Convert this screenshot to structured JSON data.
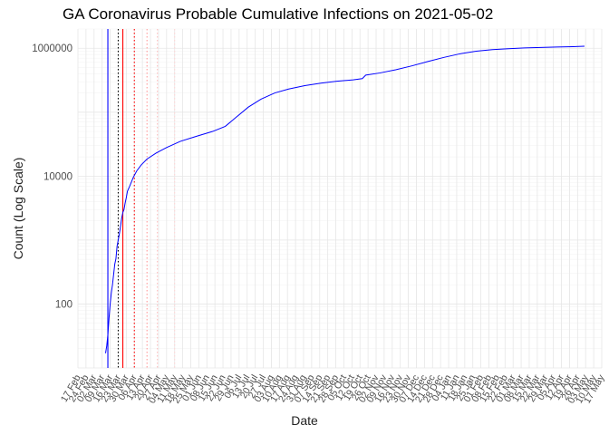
{
  "chart_data": {
    "type": "line",
    "title": "GA Coronavirus Probable Cumulative Infections on 2021-05-02",
    "xlabel": "Date",
    "ylabel": "Count (Log Scale)",
    "y_scale": "log10",
    "ylim": [
      10,
      2000000
    ],
    "x_start": "2020-02-17",
    "x_end": "2021-05-17",
    "grid": true,
    "y_ticks": [
      {
        "value": 100,
        "label": "100"
      },
      {
        "value": 10000,
        "label": "10000"
      },
      {
        "value": 1000000,
        "label": "1000000"
      }
    ],
    "x_tick_labels": [
      "17 Feb",
      "24 Feb",
      "02 Mar",
      "09 Mar",
      "16 Mar",
      "23 Mar",
      "30 Mar",
      "06 Apr",
      "13 Apr",
      "20 Apr",
      "27 Apr",
      "04 May",
      "11 May",
      "18 May",
      "25 May",
      "01 Jun",
      "08 Jun",
      "15 Jun",
      "22 Jun",
      "29 Jun",
      "06 Jul",
      "13 Jul",
      "20 Jul",
      "27 Jul",
      "03 Aug",
      "10 Aug",
      "17 Aug",
      "24 Aug",
      "31 Aug",
      "07 Sep",
      "14 Sep",
      "21 Sep",
      "28 Sep",
      "05 Oct",
      "12 Oct",
      "19 Oct",
      "26 Oct",
      "02 Nov",
      "09 Nov",
      "16 Nov",
      "23 Nov",
      "30 Nov",
      "07 Dec",
      "14 Dec",
      "21 Dec",
      "28 Dec",
      "04 Jan",
      "11 Jan",
      "18 Jan",
      "25 Jan",
      "01 Feb",
      "08 Feb",
      "15 Feb",
      "22 Feb",
      "01 Mar",
      "08 Mar",
      "15 Mar",
      "22 Mar",
      "29 Mar",
      "05 Apr",
      "12 Apr",
      "19 Apr",
      "26 Apr",
      "03 May",
      "10 May",
      "17 May"
    ],
    "vlines": [
      {
        "date": "2020-03-14",
        "color": "#0000ff",
        "style": "solid"
      },
      {
        "date": "2020-03-23",
        "color": "#000000",
        "style": "dotted"
      },
      {
        "date": "2020-03-27",
        "color": "#ff0000",
        "style": "solid"
      },
      {
        "date": "2020-04-06",
        "color": "#ff0000",
        "style": "dotted"
      },
      {
        "date": "2020-04-17",
        "color": "#ff9999",
        "style": "dotted"
      },
      {
        "date": "2020-04-26",
        "color": "#ffc0c0",
        "style": "dotted"
      },
      {
        "date": "2020-05-11",
        "color": "#ffd6d6",
        "style": "dotted"
      }
    ],
    "series": [
      {
        "color": "#0000ff",
        "points": [
          [
            "2020-03-12",
            17
          ],
          [
            "2020-03-13",
            22
          ],
          [
            "2020-03-14",
            33
          ],
          [
            "2020-03-15",
            60
          ],
          [
            "2020-03-16",
            100
          ],
          [
            "2020-03-17",
            150
          ],
          [
            "2020-03-18",
            200
          ],
          [
            "2020-03-19",
            290
          ],
          [
            "2020-03-20",
            420
          ],
          [
            "2020-03-21",
            510
          ],
          [
            "2020-03-22",
            800
          ],
          [
            "2020-03-23",
            1000
          ],
          [
            "2020-03-24",
            1250
          ],
          [
            "2020-03-25",
            1650
          ],
          [
            "2020-03-26",
            2200
          ],
          [
            "2020-03-27",
            2700
          ],
          [
            "2020-03-28",
            3000
          ],
          [
            "2020-03-29",
            3800
          ],
          [
            "2020-03-30",
            4600
          ],
          [
            "2020-03-31",
            5800
          ],
          [
            "2020-04-02",
            7000
          ],
          [
            "2020-04-05",
            9500
          ],
          [
            "2020-04-08",
            12000
          ],
          [
            "2020-04-12",
            15000
          ],
          [
            "2020-04-17",
            18500
          ],
          [
            "2020-04-25",
            23000
          ],
          [
            "2020-05-04",
            28000
          ],
          [
            "2020-05-16",
            35000
          ],
          [
            "2020-05-30",
            42000
          ],
          [
            "2020-06-13",
            50000
          ],
          [
            "2020-06-24",
            60000
          ],
          [
            "2020-07-04",
            85000
          ],
          [
            "2020-07-14",
            120000
          ],
          [
            "2020-07-25",
            160000
          ],
          [
            "2020-08-06",
            200000
          ],
          [
            "2020-08-18",
            230000
          ],
          [
            "2020-09-01",
            260000
          ],
          [
            "2020-09-15",
            285000
          ],
          [
            "2020-09-29",
            305000
          ],
          [
            "2020-10-13",
            320000
          ],
          [
            "2020-10-21",
            335000
          ],
          [
            "2020-10-24",
            380000
          ],
          [
            "2020-11-05",
            410000
          ],
          [
            "2020-11-19",
            460000
          ],
          [
            "2020-12-03",
            530000
          ],
          [
            "2020-12-17",
            620000
          ],
          [
            "2020-12-31",
            720000
          ],
          [
            "2021-01-14",
            820000
          ],
          [
            "2021-01-28",
            900000
          ],
          [
            "2021-02-11",
            950000
          ],
          [
            "2021-02-25",
            985000
          ],
          [
            "2021-03-11",
            1010000
          ],
          [
            "2021-03-25",
            1030000
          ],
          [
            "2021-04-08",
            1045000
          ],
          [
            "2021-04-22",
            1060000
          ],
          [
            "2021-05-02",
            1075000
          ]
        ]
      }
    ]
  }
}
